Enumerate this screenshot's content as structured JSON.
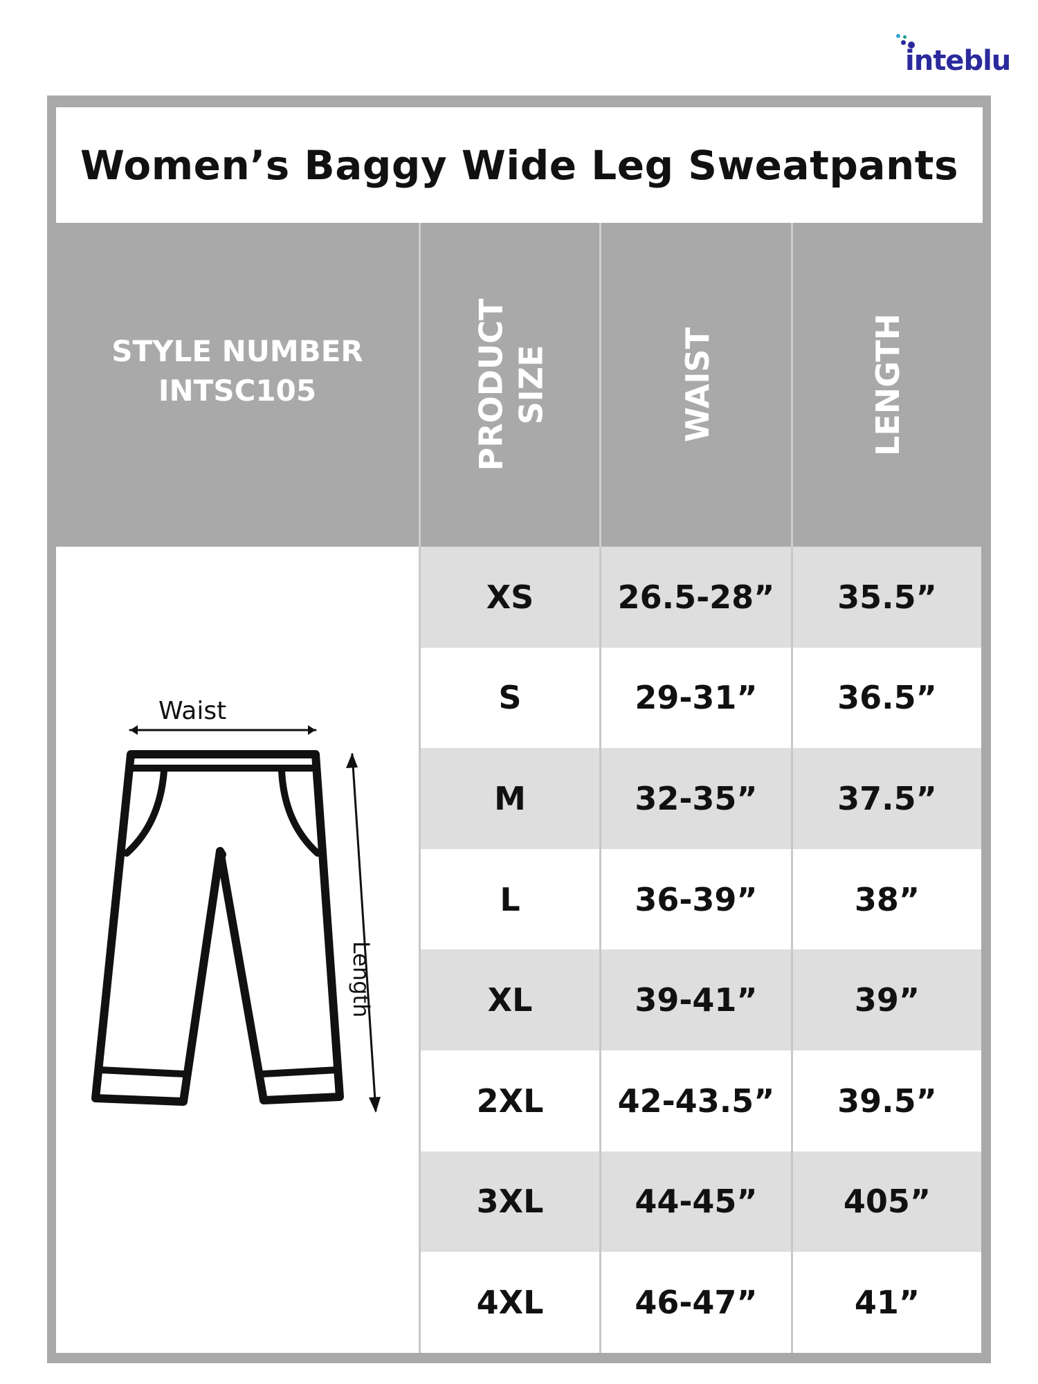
{
  "brand": {
    "logo_text": "inteblu",
    "colors": {
      "logo": "#2b2a9c",
      "frame": "#a9a9a9",
      "shade": "#dedede"
    }
  },
  "title": "Women’s Baggy Wide Leg Sweatpants",
  "header": {
    "style_label": "STYLE NUMBER",
    "style_number": "INTSC105",
    "columns": [
      "PRODUCT SIZE",
      "WAIST",
      "LENGTH"
    ],
    "product_line1": "PRODUCT",
    "product_line2": "SIZE"
  },
  "diagram": {
    "waist_label": "Waist",
    "length_label": "Length",
    "icon": "pants-icon"
  },
  "rows": [
    {
      "size": "XS",
      "waist": "26.5-28”",
      "length": "35.5”"
    },
    {
      "size": "S",
      "waist": "29-31”",
      "length": "36.5”"
    },
    {
      "size": "M",
      "waist": "32-35”",
      "length": "37.5”"
    },
    {
      "size": "L",
      "waist": "36-39”",
      "length": "38”"
    },
    {
      "size": "XL",
      "waist": "39-41”",
      "length": "39”"
    },
    {
      "size": "2XL",
      "waist": "42-43.5”",
      "length": "39.5”"
    },
    {
      "size": "3XL",
      "waist": "44-45”",
      "length": "405”"
    },
    {
      "size": "4XL",
      "waist": "46-47”",
      "length": "41”"
    }
  ]
}
